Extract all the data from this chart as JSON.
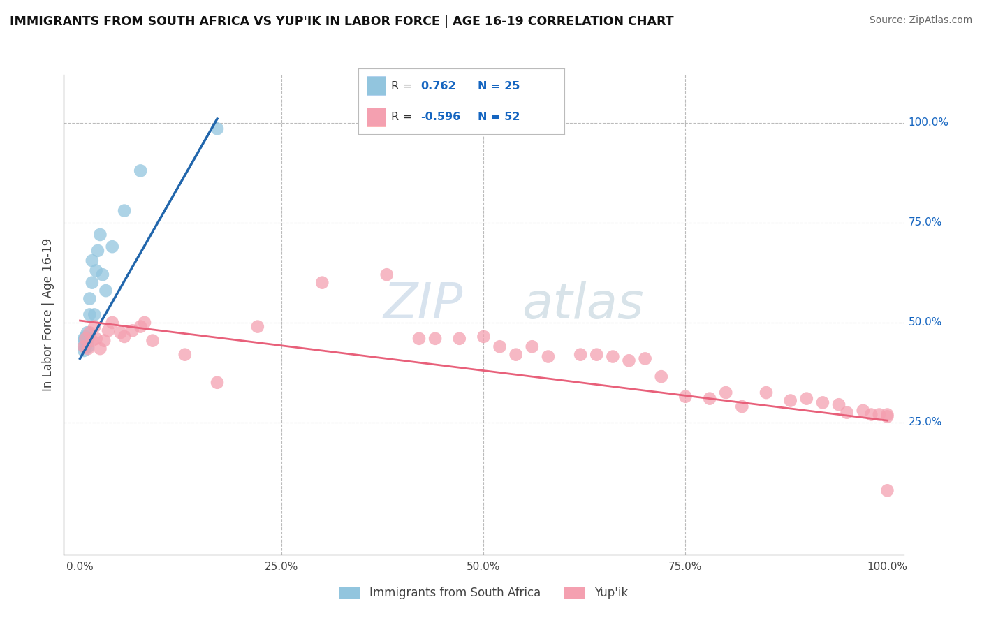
{
  "title": "IMMIGRANTS FROM SOUTH AFRICA VS YUP'IK IN LABOR FORCE | AGE 16-19 CORRELATION CHART",
  "source": "Source: ZipAtlas.com",
  "ylabel": "In Labor Force | Age 16-19",
  "xlim": [
    -0.02,
    1.02
  ],
  "ylim": [
    -0.08,
    1.12
  ],
  "x_tick_positions": [
    0.0,
    0.25,
    0.5,
    0.75,
    1.0
  ],
  "x_tick_labels": [
    "0.0%",
    "25.0%",
    "50.0%",
    "75.0%",
    "100.0%"
  ],
  "y_tick_positions_right": [
    1.0,
    0.75,
    0.5,
    0.25
  ],
  "y_tick_labels_right": [
    "100.0%",
    "75.0%",
    "50.0%",
    "25.0%"
  ],
  "label1": "Immigrants from South Africa",
  "label2": "Yup'ik",
  "color_blue": "#92c5de",
  "color_pink": "#f4a0b0",
  "line_blue": "#2166ac",
  "line_pink": "#e8607a",
  "bg_color": "#ffffff",
  "grid_color": "#bbbbbb",
  "r_value_color": "#1565c0",
  "legend_text_color": "#333333",
  "scatter_blue_x": [
    0.005,
    0.005,
    0.005,
    0.005,
    0.007,
    0.007,
    0.007,
    0.009,
    0.009,
    0.01,
    0.01,
    0.012,
    0.012,
    0.015,
    0.015,
    0.018,
    0.02,
    0.022,
    0.025,
    0.028,
    0.032,
    0.04,
    0.055,
    0.075,
    0.17
  ],
  "scatter_blue_y": [
    0.43,
    0.44,
    0.455,
    0.46,
    0.44,
    0.455,
    0.465,
    0.46,
    0.475,
    0.44,
    0.46,
    0.52,
    0.56,
    0.6,
    0.655,
    0.52,
    0.63,
    0.68,
    0.72,
    0.62,
    0.58,
    0.69,
    0.78,
    0.88,
    0.985
  ],
  "scatter_pink_x": [
    0.005,
    0.007,
    0.01,
    0.012,
    0.015,
    0.018,
    0.02,
    0.025,
    0.03,
    0.035,
    0.04,
    0.05,
    0.055,
    0.065,
    0.075,
    0.08,
    0.09,
    0.13,
    0.17,
    0.22,
    0.3,
    0.38,
    0.42,
    0.44,
    0.47,
    0.5,
    0.52,
    0.54,
    0.56,
    0.58,
    0.62,
    0.64,
    0.66,
    0.68,
    0.7,
    0.72,
    0.75,
    0.78,
    0.8,
    0.82,
    0.85,
    0.88,
    0.9,
    0.92,
    0.94,
    0.95,
    0.97,
    0.98,
    0.99,
    1.0,
    1.0,
    1.0
  ],
  "scatter_pink_y": [
    0.44,
    0.46,
    0.435,
    0.475,
    0.455,
    0.49,
    0.46,
    0.435,
    0.455,
    0.48,
    0.5,
    0.475,
    0.465,
    0.48,
    0.49,
    0.5,
    0.455,
    0.42,
    0.35,
    0.49,
    0.6,
    0.62,
    0.46,
    0.46,
    0.46,
    0.465,
    0.44,
    0.42,
    0.44,
    0.415,
    0.42,
    0.42,
    0.415,
    0.405,
    0.41,
    0.365,
    0.315,
    0.31,
    0.325,
    0.29,
    0.325,
    0.305,
    0.31,
    0.3,
    0.295,
    0.275,
    0.28,
    0.27,
    0.27,
    0.08,
    0.27,
    0.265
  ],
  "blue_line_x": [
    0.0,
    0.17
  ],
  "blue_line_y": [
    0.41,
    1.01
  ],
  "pink_line_x": [
    0.0,
    1.0
  ],
  "pink_line_y": [
    0.505,
    0.255
  ]
}
